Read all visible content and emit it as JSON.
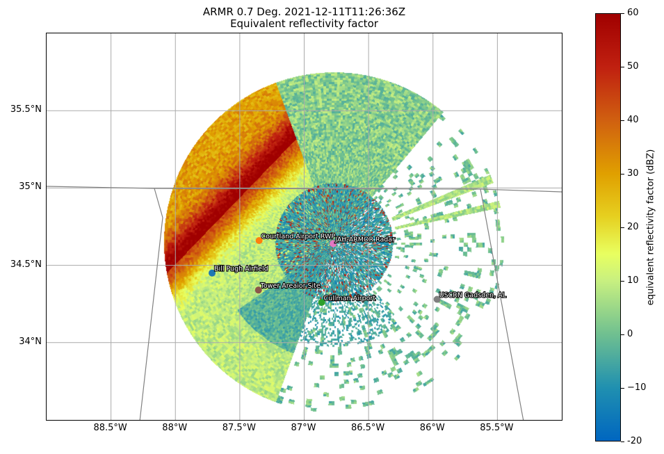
{
  "chart_data": {
    "type": "heatmap",
    "title": "ARMR 0.7 Deg. 2021-12-11T11:26:36Z",
    "subtitle": "Equivalent reflectivity factor",
    "xlim": [
      -89.0,
      -85.0
    ],
    "ylim": [
      33.5,
      36.0
    ],
    "grid": true,
    "x_ticks": [
      {
        "value": -88.5,
        "label": "88.5°W"
      },
      {
        "value": -88.0,
        "label": "88°W"
      },
      {
        "value": -87.5,
        "label": "87.5°W"
      },
      {
        "value": -87.0,
        "label": "87°W"
      },
      {
        "value": -86.5,
        "label": "86.5°W"
      },
      {
        "value": -86.0,
        "label": "86°W"
      },
      {
        "value": -85.5,
        "label": "85.5°W"
      }
    ],
    "y_ticks": [
      {
        "value": 34.0,
        "label": "34°N"
      },
      {
        "value": 34.5,
        "label": "34.5°N"
      },
      {
        "value": 35.0,
        "label": "35°N"
      },
      {
        "value": 35.5,
        "label": "35.5°N"
      }
    ],
    "colorbar": {
      "label": "equivalent reflectivity factor (dBZ)",
      "range": [
        -20,
        60
      ],
      "ticks": [
        "-20",
        "−10",
        "0",
        "10",
        "20",
        "30",
        "40",
        "50",
        "60"
      ],
      "tick_values": [
        -20,
        -10,
        0,
        10,
        20,
        30,
        40,
        50,
        60
      ]
    },
    "radar": {
      "lon": -86.77,
      "lat": 34.65,
      "max_range_deg_lat": 1.1
    },
    "stations": [
      {
        "name": "Courtland Airport RWP",
        "lon": -87.35,
        "lat": 34.66,
        "color": "#ff7f0e"
      },
      {
        "name": "JAH-ARMOR Radar",
        "lon": -86.775,
        "lat": 34.64,
        "color": "#e377c2"
      },
      {
        "name": "Bill Pugh Airfield",
        "lon": -87.715,
        "lat": 34.45,
        "color": "#1f77b4"
      },
      {
        "name": "Tower Areaior Site",
        "lon": -87.355,
        "lat": 34.34,
        "color": "#8c564b"
      },
      {
        "name": "Cullman Airport",
        "lon": -86.865,
        "lat": 34.26,
        "color": "#2ca02c"
      },
      {
        "name": "USCRN Gadsden, AL",
        "lon": -85.968,
        "lat": 34.28,
        "color": "#7f7f7f"
      }
    ]
  }
}
